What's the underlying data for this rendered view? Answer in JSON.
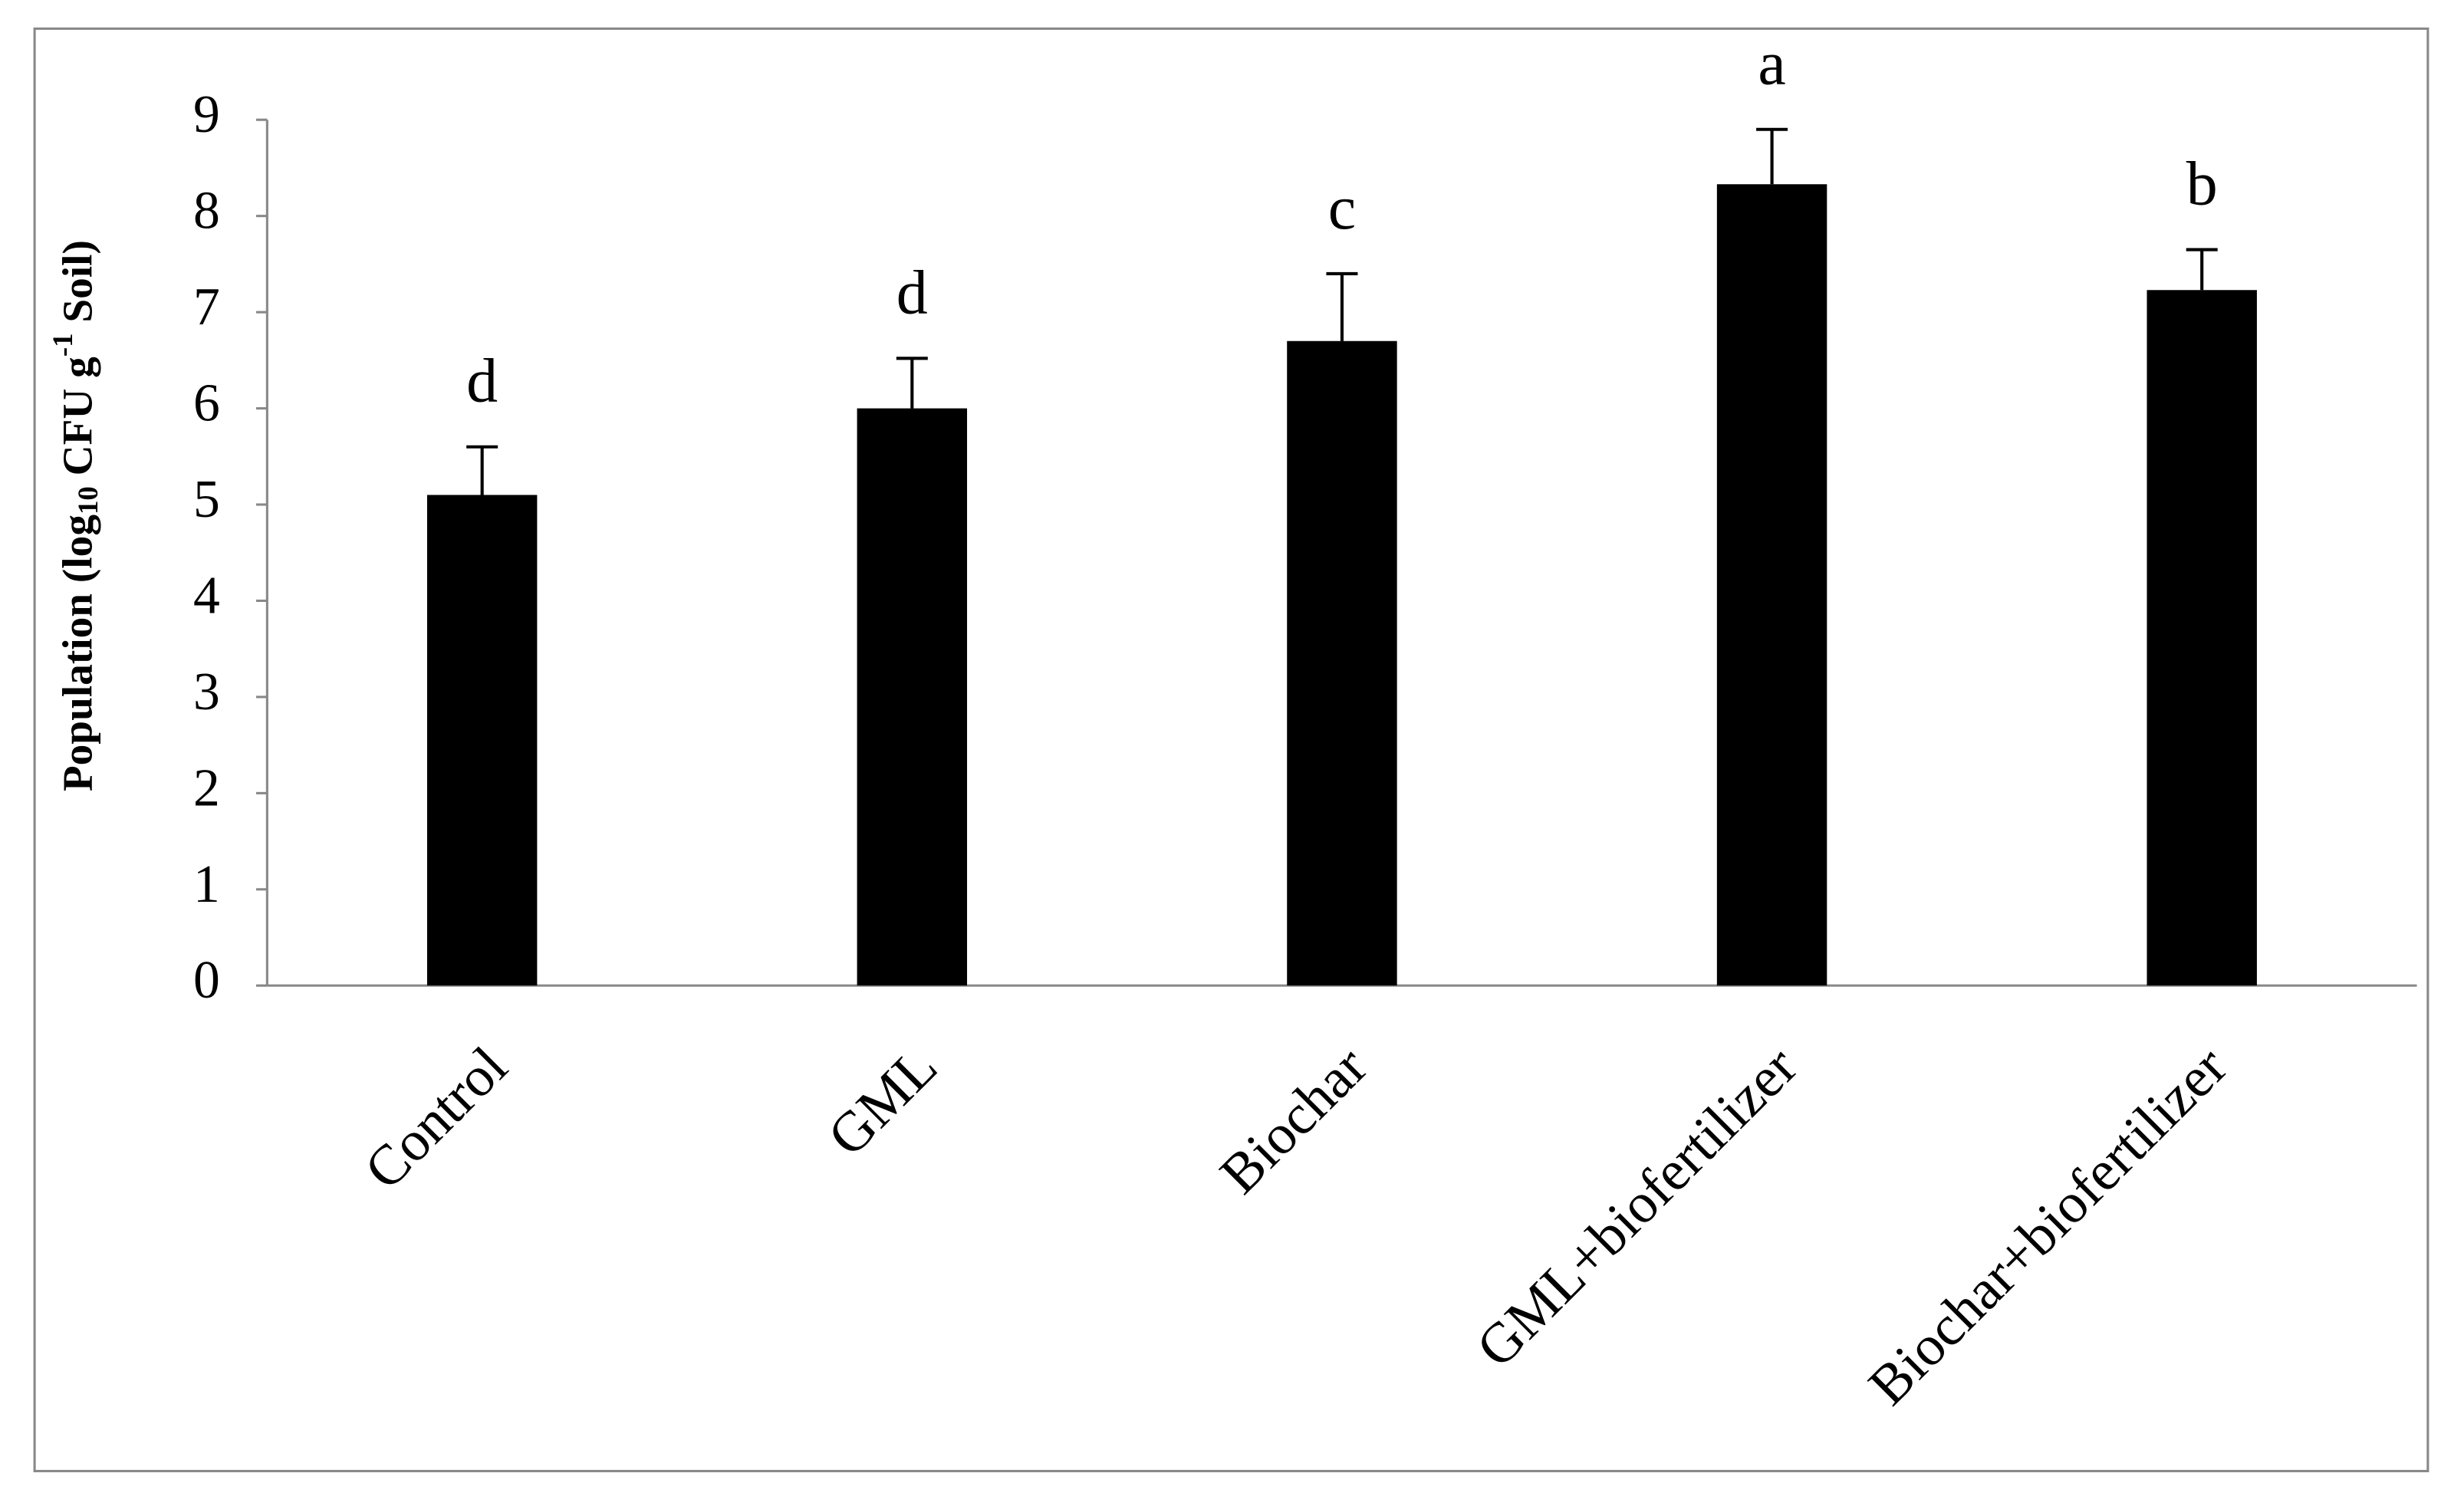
{
  "chart_data": {
    "type": "bar",
    "ylabel": [
      "Population (log",
      "10",
      " CFU g",
      "-1",
      " Soil)"
    ],
    "categories": [
      "Control",
      "GML",
      "Biochar",
      "GML+biofertilizer",
      "Biochar+biofertilizer"
    ],
    "values": [
      5.1,
      6.0,
      6.7,
      8.33,
      7.23
    ],
    "errors": [
      0.5,
      0.52,
      0.7,
      0.57,
      0.42
    ],
    "letters": [
      "d",
      "d",
      "c",
      "a",
      "b"
    ],
    "color": "#000000",
    "ylim": [
      0,
      9
    ],
    "yticks": [
      0,
      1,
      2,
      3,
      4,
      5,
      6,
      7,
      8,
      9
    ]
  }
}
